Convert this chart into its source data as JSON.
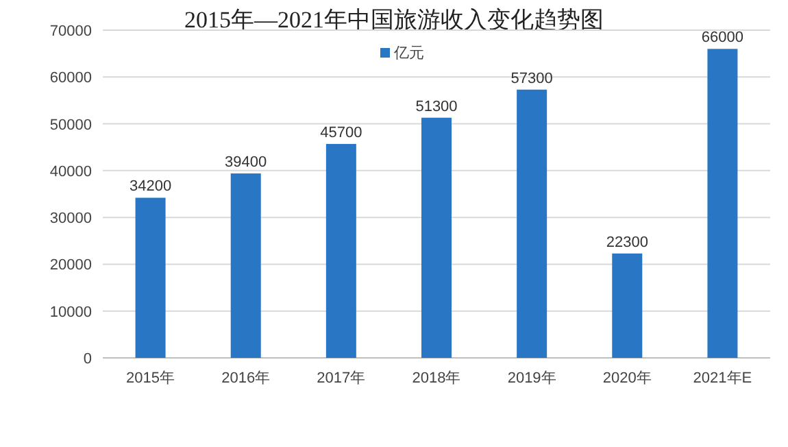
{
  "chart_data": {
    "type": "bar",
    "title": "2015年—2021年中国旅游收入变化趋势图",
    "categories": [
      "2015年",
      "2016年",
      "2017年",
      "2018年",
      "2019年",
      "2020年",
      "2021年E"
    ],
    "series": [
      {
        "name": "亿元",
        "color": "#2876c4",
        "values": [
          34200,
          39400,
          45700,
          51300,
          57300,
          22300,
          66000
        ]
      }
    ],
    "ylim": [
      0,
      70000
    ],
    "yticks": [
      0,
      10000,
      20000,
      30000,
      40000,
      50000,
      60000,
      70000
    ],
    "grid": "y",
    "legend": "top",
    "data_labels": true
  }
}
